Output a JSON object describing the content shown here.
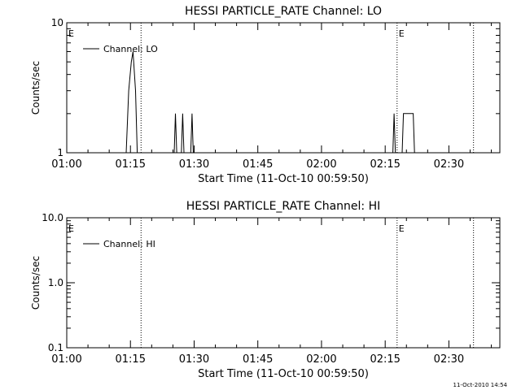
{
  "chart_data": [
    {
      "type": "line",
      "title": "HESSI PARTICLE_RATE Channel: LO",
      "xlabel": "Start Time (11-Oct-10 00:59:50)",
      "ylabel": "Counts/sec",
      "x_range": [
        "01:00",
        "02:42"
      ],
      "x_ticks": [
        "01:00",
        "01:15",
        "01:30",
        "01:45",
        "02:00",
        "02:15",
        "02:30"
      ],
      "y_scale": "log",
      "ylim": [
        1,
        10
      ],
      "y_ticks": [
        "1",
        "10"
      ],
      "grid": false,
      "legend": {
        "position": "top-left",
        "entries": [
          "Channel: LO"
        ]
      },
      "series": [
        {
          "name": "Channel: LO",
          "color": "#000000",
          "points": [
            [
              "01:00",
              1
            ],
            [
              "01:14",
              1
            ],
            [
              "01:14.6",
              3
            ],
            [
              "01:15.2",
              5
            ],
            [
              "01:15.6",
              6
            ],
            [
              "01:16.2",
              3
            ],
            [
              "01:16.6",
              1
            ],
            [
              "01:25.3",
              1
            ],
            [
              "01:25.6",
              2
            ],
            [
              "01:25.9",
              1
            ],
            [
              "01:27",
              1
            ],
            [
              "01:27.3",
              2
            ],
            [
              "01:27.6",
              1
            ],
            [
              "01:29.2",
              1
            ],
            [
              "01:29.5",
              2
            ],
            [
              "01:29.8",
              1
            ],
            [
              "02:16.8",
              1
            ],
            [
              "02:17.1",
              2
            ],
            [
              "02:17.4",
              1
            ],
            [
              "02:19",
              1
            ],
            [
              "02:19.3",
              2
            ],
            [
              "02:21.6",
              2
            ],
            [
              "02:21.9",
              1
            ],
            [
              "02:42",
              1
            ]
          ]
        }
      ],
      "event_lines": [
        "01:17.5",
        "02:17.8",
        "02:35.8"
      ],
      "event_marks": [
        {
          "label": "E",
          "at": "01:00"
        },
        {
          "label": "E",
          "at": "02:17.8"
        }
      ]
    },
    {
      "type": "line",
      "title": "HESSI PARTICLE_RATE Channel: HI",
      "xlabel": "Start Time (11-Oct-10 00:59:50)",
      "ylabel": "Counts/sec",
      "x_range": [
        "01:00",
        "02:42"
      ],
      "x_ticks": [
        "01:00",
        "01:15",
        "01:30",
        "01:45",
        "02:00",
        "02:15",
        "02:30"
      ],
      "y_scale": "log",
      "ylim": [
        0.1,
        10
      ],
      "y_ticks": [
        "0.1",
        "1.0",
        "10.0"
      ],
      "grid": false,
      "legend": {
        "position": "top-left",
        "entries": [
          "Channel: HI"
        ]
      },
      "series": [
        {
          "name": "Channel: HI",
          "color": "#000000",
          "points": []
        }
      ],
      "event_lines": [
        "01:17.5",
        "02:17.8",
        "02:35.8"
      ],
      "event_marks": [
        {
          "label": "E",
          "at": "01:00"
        },
        {
          "label": "E",
          "at": "02:17.8"
        }
      ]
    }
  ],
  "footer": {
    "timestamp": "11-Oct-2010 14:54"
  }
}
